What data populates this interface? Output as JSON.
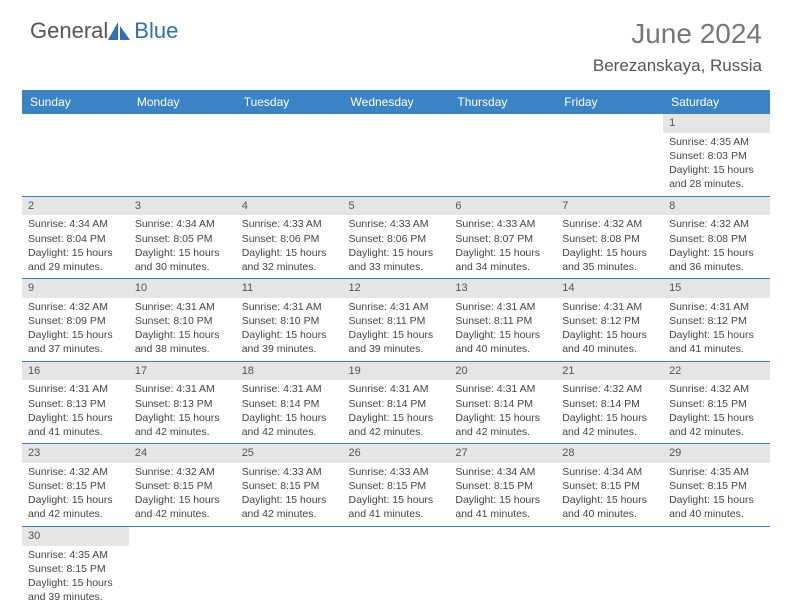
{
  "brand": {
    "part1": "General",
    "part2": "Blue",
    "logo_fill": "#2e6fb5"
  },
  "title": "June 2024",
  "location": "Berezanskaya, Russia",
  "header_bg": "#3a83c5",
  "header_fg": "#ffffff",
  "daynum_bg": "#e5e5e5",
  "cell_border": "#3a83c5",
  "weekdays": [
    "Sunday",
    "Monday",
    "Tuesday",
    "Wednesday",
    "Thursday",
    "Friday",
    "Saturday"
  ],
  "days": {
    "1": {
      "sunrise": "4:35 AM",
      "sunset": "8:03 PM",
      "daylight": "15 hours and 28 minutes."
    },
    "2": {
      "sunrise": "4:34 AM",
      "sunset": "8:04 PM",
      "daylight": "15 hours and 29 minutes."
    },
    "3": {
      "sunrise": "4:34 AM",
      "sunset": "8:05 PM",
      "daylight": "15 hours and 30 minutes."
    },
    "4": {
      "sunrise": "4:33 AM",
      "sunset": "8:06 PM",
      "daylight": "15 hours and 32 minutes."
    },
    "5": {
      "sunrise": "4:33 AM",
      "sunset": "8:06 PM",
      "daylight": "15 hours and 33 minutes."
    },
    "6": {
      "sunrise": "4:33 AM",
      "sunset": "8:07 PM",
      "daylight": "15 hours and 34 minutes."
    },
    "7": {
      "sunrise": "4:32 AM",
      "sunset": "8:08 PM",
      "daylight": "15 hours and 35 minutes."
    },
    "8": {
      "sunrise": "4:32 AM",
      "sunset": "8:08 PM",
      "daylight": "15 hours and 36 minutes."
    },
    "9": {
      "sunrise": "4:32 AM",
      "sunset": "8:09 PM",
      "daylight": "15 hours and 37 minutes."
    },
    "10": {
      "sunrise": "4:31 AM",
      "sunset": "8:10 PM",
      "daylight": "15 hours and 38 minutes."
    },
    "11": {
      "sunrise": "4:31 AM",
      "sunset": "8:10 PM",
      "daylight": "15 hours and 39 minutes."
    },
    "12": {
      "sunrise": "4:31 AM",
      "sunset": "8:11 PM",
      "daylight": "15 hours and 39 minutes."
    },
    "13": {
      "sunrise": "4:31 AM",
      "sunset": "8:11 PM",
      "daylight": "15 hours and 40 minutes."
    },
    "14": {
      "sunrise": "4:31 AM",
      "sunset": "8:12 PM",
      "daylight": "15 hours and 40 minutes."
    },
    "15": {
      "sunrise": "4:31 AM",
      "sunset": "8:12 PM",
      "daylight": "15 hours and 41 minutes."
    },
    "16": {
      "sunrise": "4:31 AM",
      "sunset": "8:13 PM",
      "daylight": "15 hours and 41 minutes."
    },
    "17": {
      "sunrise": "4:31 AM",
      "sunset": "8:13 PM",
      "daylight": "15 hours and 42 minutes."
    },
    "18": {
      "sunrise": "4:31 AM",
      "sunset": "8:14 PM",
      "daylight": "15 hours and 42 minutes."
    },
    "19": {
      "sunrise": "4:31 AM",
      "sunset": "8:14 PM",
      "daylight": "15 hours and 42 minutes."
    },
    "20": {
      "sunrise": "4:31 AM",
      "sunset": "8:14 PM",
      "daylight": "15 hours and 42 minutes."
    },
    "21": {
      "sunrise": "4:32 AM",
      "sunset": "8:14 PM",
      "daylight": "15 hours and 42 minutes."
    },
    "22": {
      "sunrise": "4:32 AM",
      "sunset": "8:15 PM",
      "daylight": "15 hours and 42 minutes."
    },
    "23": {
      "sunrise": "4:32 AM",
      "sunset": "8:15 PM",
      "daylight": "15 hours and 42 minutes."
    },
    "24": {
      "sunrise": "4:32 AM",
      "sunset": "8:15 PM",
      "daylight": "15 hours and 42 minutes."
    },
    "25": {
      "sunrise": "4:33 AM",
      "sunset": "8:15 PM",
      "daylight": "15 hours and 42 minutes."
    },
    "26": {
      "sunrise": "4:33 AM",
      "sunset": "8:15 PM",
      "daylight": "15 hours and 41 minutes."
    },
    "27": {
      "sunrise": "4:34 AM",
      "sunset": "8:15 PM",
      "daylight": "15 hours and 41 minutes."
    },
    "28": {
      "sunrise": "4:34 AM",
      "sunset": "8:15 PM",
      "daylight": "15 hours and 40 minutes."
    },
    "29": {
      "sunrise": "4:35 AM",
      "sunset": "8:15 PM",
      "daylight": "15 hours and 40 minutes."
    },
    "30": {
      "sunrise": "4:35 AM",
      "sunset": "8:15 PM",
      "daylight": "15 hours and 39 minutes."
    }
  },
  "layout": {
    "start_weekday_index": 6,
    "num_days": 30,
    "columns": 7
  },
  "labels": {
    "sunrise": "Sunrise: ",
    "sunset": "Sunset: ",
    "daylight": "Daylight: "
  }
}
